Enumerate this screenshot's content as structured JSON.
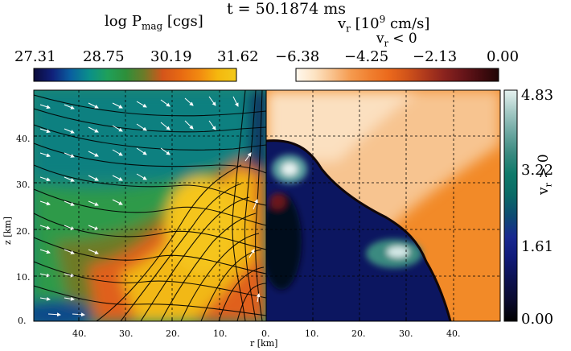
{
  "title": "t = 50.1874 ms",
  "colorbars": {
    "left": {
      "label_main": "log P",
      "label_sub": "mag",
      "label_unit": " [cgs]",
      "ticks": [
        "27.31",
        "28.75",
        "30.19",
        "31.62"
      ],
      "colors": [
        "#0b0b3a",
        "#10207a",
        "#0a5fa0",
        "#0a8f8a",
        "#1fa05a",
        "#2e8f3a",
        "#6e7a28",
        "#d4551a",
        "#e86a12",
        "#f28a10",
        "#f5b80e",
        "#f2c91a"
      ]
    },
    "right_top": {
      "label_main": "v",
      "label_sub": "r",
      "label_unit": " [10",
      "label_sup": "9",
      "label_unit2": " cm/s]",
      "sublabel_main": "v",
      "sublabel_sub": "r",
      "sublabel_rest": " < 0",
      "ticks": [
        "−6.38",
        "−4.25",
        "−2.13",
        "0.00"
      ],
      "colors": [
        "#fff8ee",
        "#fde4c4",
        "#f9c08a",
        "#f59a4e",
        "#f08030",
        "#ec6a1c",
        "#d2541a",
        "#b03a1c",
        "#8c241e",
        "#6a161a",
        "#460c10",
        "#200606"
      ]
    },
    "right_side": {
      "label_main": "v",
      "label_sub": "r",
      "label_rest": " > 0",
      "ticks": [
        "4.83",
        "3.22",
        "1.61",
        "0.00"
      ],
      "colors": [
        "#000000",
        "#0a0a2e",
        "#0c1150",
        "#101a78",
        "#182890",
        "#0d4a72",
        "#0a6a66",
        "#0f7a6a",
        "#3a8a80",
        "#6ea8a2",
        "#a6cac6",
        "#e6f2f0"
      ]
    }
  },
  "chart_data": {
    "type": "heatmap",
    "panels": [
      "log P_mag (left half, with field lines and velocity vectors)",
      "v_r (right half)"
    ],
    "xlabel": "r [km]",
    "ylabel": "z [km]",
    "x_ticks_left": [
      "40.",
      "30.",
      "20.",
      "10.",
      "0."
    ],
    "x_ticks_right": [
      "10.",
      "20.",
      "30.",
      "40."
    ],
    "y_ticks": [
      "0.",
      "10.",
      "20.",
      "30.",
      "40."
    ],
    "xlim": [
      -50,
      50
    ],
    "ylim": [
      0,
      50
    ],
    "grid": true
  }
}
